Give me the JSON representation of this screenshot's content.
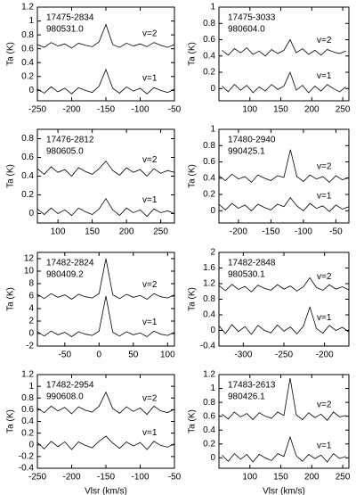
{
  "chart_data": [
    {
      "type": "line",
      "title": "17475-2834",
      "subtitle": "980531.0",
      "ylabel": "Ta (K)",
      "x": [
        -250,
        -240,
        -230,
        -220,
        -210,
        -200,
        -190,
        -180,
        -170,
        -160,
        -150,
        -140,
        -130,
        -120,
        -110,
        -100,
        -90,
        -80,
        -70,
        -60,
        -50
      ],
      "series": [
        {
          "name": "v=2",
          "color": "#000000",
          "values": [
            0.66,
            0.62,
            0.69,
            0.64,
            0.67,
            0.61,
            0.68,
            0.65,
            0.63,
            0.7,
            0.95,
            0.66,
            0.62,
            0.68,
            0.64,
            0.67,
            0.63,
            0.69,
            0.65,
            0.62,
            0.66
          ]
        },
        {
          "name": "v=1",
          "color": "#000000",
          "values": [
            0.02,
            -0.04,
            0.05,
            -0.02,
            0.03,
            -0.05,
            0.04,
            0.0,
            -0.03,
            0.06,
            0.3,
            0.03,
            -0.04,
            0.05,
            -0.01,
            0.03,
            -0.05,
            0.04,
            0.0,
            -0.03,
            0.02
          ]
        }
      ],
      "xlim": [
        -250,
        -50
      ],
      "xticks": [
        -250,
        -200,
        -150,
        -100,
        -50
      ],
      "ylim": [
        -0.15,
        1.2
      ],
      "yticks": [
        0,
        0.2,
        0.4,
        0.6,
        0.8,
        1,
        1.2
      ]
    },
    {
      "type": "line",
      "title": "17475-3033",
      "subtitle": "980604.0",
      "ylabel": "Ta (K)",
      "x": [
        55,
        65,
        75,
        85,
        95,
        105,
        115,
        125,
        135,
        145,
        155,
        165,
        175,
        185,
        195,
        205,
        215,
        225,
        235,
        245,
        255
      ],
      "series": [
        {
          "name": "v=2",
          "color": "#000000",
          "values": [
            0.47,
            0.41,
            0.49,
            0.44,
            0.5,
            0.42,
            0.46,
            0.4,
            0.48,
            0.43,
            0.47,
            0.6,
            0.44,
            0.49,
            0.42,
            0.47,
            0.41,
            0.48,
            0.45,
            0.43,
            0.46
          ]
        },
        {
          "name": "v=1",
          "color": "#000000",
          "values": [
            0.03,
            -0.04,
            0.05,
            -0.02,
            0.04,
            -0.05,
            0.02,
            -0.03,
            0.05,
            -0.01,
            0.03,
            0.2,
            -0.02,
            0.04,
            -0.05,
            0.03,
            -0.03,
            0.05,
            0.0,
            -0.04,
            0.02
          ]
        }
      ],
      "xlim": [
        50,
        260
      ],
      "xticks": [
        100,
        150,
        200,
        250
      ],
      "ylim": [
        -0.15,
        1
      ],
      "yticks": [
        0,
        0.2,
        0.4,
        0.6,
        0.8,
        1
      ]
    },
    {
      "type": "line",
      "title": "17476-2812",
      "subtitle": "980605.0",
      "ylabel": "Ta (K)",
      "x": [
        70,
        80,
        90,
        100,
        110,
        120,
        130,
        140,
        150,
        160,
        170,
        180,
        190,
        200,
        210,
        220,
        230,
        240,
        250,
        260,
        270
      ],
      "series": [
        {
          "name": "v=2",
          "color": "#000000",
          "values": [
            0.48,
            0.42,
            0.5,
            0.44,
            0.47,
            0.4,
            0.49,
            0.45,
            0.42,
            0.48,
            0.56,
            0.46,
            0.41,
            0.49,
            0.44,
            0.47,
            0.4,
            0.48,
            0.43,
            0.46,
            0.44
          ]
        },
        {
          "name": "v=1",
          "color": "#000000",
          "values": [
            0.05,
            -0.01,
            0.06,
            0.0,
            0.04,
            -0.02,
            0.06,
            0.02,
            -0.01,
            0.05,
            0.16,
            0.04,
            -0.02,
            0.06,
            0.01,
            0.04,
            -0.03,
            0.05,
            0.01,
            0.03,
            0.0
          ]
        }
      ],
      "xlim": [
        70,
        270
      ],
      "xticks": [
        100,
        150,
        200,
        250
      ],
      "ylim": [
        -0.1,
        0.9
      ],
      "yticks": [
        0,
        0.2,
        0.4,
        0.6,
        0.8
      ]
    },
    {
      "type": "line",
      "title": "17480-2940",
      "subtitle": "990425.1",
      "ylabel": "Ta (K)",
      "x": [
        -230,
        -220,
        -210,
        -200,
        -190,
        -180,
        -170,
        -160,
        -150,
        -140,
        -130,
        -120,
        -110,
        -100,
        -90,
        -80,
        -70,
        -60,
        -50,
        -40,
        -30
      ],
      "series": [
        {
          "name": "v=2",
          "color": "#000000",
          "values": [
            0.43,
            0.37,
            0.45,
            0.39,
            0.42,
            0.35,
            0.44,
            0.4,
            0.37,
            0.43,
            0.41,
            0.75,
            0.42,
            0.36,
            0.44,
            0.39,
            0.42,
            0.35,
            0.43,
            0.38,
            0.41
          ]
        },
        {
          "name": "v=1",
          "color": "#000000",
          "values": [
            0.08,
            0.01,
            0.09,
            0.03,
            0.07,
            0.0,
            0.08,
            0.04,
            0.01,
            0.08,
            0.05,
            0.16,
            0.06,
            0.0,
            0.09,
            0.03,
            0.06,
            -0.01,
            0.07,
            0.02,
            0.05
          ]
        }
      ],
      "xlim": [
        -230,
        -30
      ],
      "xticks": [
        -200,
        -150,
        -100,
        -50
      ],
      "ylim": [
        -0.15,
        1
      ],
      "yticks": [
        0,
        0.2,
        0.4,
        0.6,
        0.8,
        1
      ]
    },
    {
      "type": "line",
      "title": "17482-2824",
      "subtitle": "980409.2",
      "ylabel": "Ta (K)",
      "x": [
        -90,
        -80,
        -70,
        -60,
        -50,
        -40,
        -30,
        -20,
        -10,
        0,
        10,
        20,
        30,
        40,
        50,
        60,
        70,
        80,
        90,
        100,
        110
      ],
      "series": [
        {
          "name": "v=2",
          "color": "#000000",
          "values": [
            6.3,
            5.6,
            6.4,
            5.8,
            6.2,
            5.5,
            6.3,
            5.9,
            5.7,
            6.4,
            12.0,
            6.2,
            5.6,
            6.3,
            5.8,
            6.1,
            5.5,
            6.4,
            5.9,
            5.7,
            6.2
          ]
        },
        {
          "name": "v=1",
          "color": "#000000",
          "values": [
            0.3,
            -0.4,
            0.4,
            -0.2,
            0.2,
            -0.5,
            0.3,
            -0.1,
            -0.3,
            0.4,
            6.0,
            0.2,
            -0.4,
            0.3,
            -0.2,
            0.1,
            -0.5,
            0.4,
            -0.1,
            -0.3,
            0.2
          ]
        }
      ],
      "xlim": [
        -90,
        110
      ],
      "xticks": [
        -50,
        0,
        50,
        100
      ],
      "ylim": [
        -2,
        13
      ],
      "yticks": [
        -2,
        0,
        2,
        4,
        6,
        8,
        10,
        12
      ]
    },
    {
      "type": "line",
      "title": "17482-2848",
      "subtitle": "980530.1",
      "ylabel": "Ta (K)",
      "x": [
        -330,
        -322,
        -314,
        -306,
        -298,
        -290,
        -282,
        -274,
        -266,
        -258,
        -250,
        -242,
        -234,
        -226,
        -218,
        -210,
        -202,
        -194,
        -186,
        -178,
        -170
      ],
      "series": [
        {
          "name": "v=2",
          "color": "#000000",
          "values": [
            1.15,
            1.02,
            1.18,
            1.05,
            1.13,
            0.99,
            1.16,
            1.08,
            1.03,
            1.17,
            1.06,
            1.14,
            1.01,
            1.12,
            1.35,
            1.1,
            1.03,
            1.17,
            1.06,
            1.12,
            1.04
          ]
        },
        {
          "name": "v=1",
          "color": "#000000",
          "values": [
            0.12,
            -0.08,
            0.15,
            -0.03,
            0.1,
            -0.1,
            0.13,
            0.0,
            -0.06,
            0.14,
            -0.02,
            0.09,
            -0.09,
            0.11,
            0.6,
            0.05,
            -0.07,
            0.13,
            0.0,
            0.08,
            -0.04
          ]
        }
      ],
      "xlim": [
        -330,
        -170
      ],
      "xticks": [
        -300,
        -250,
        -200
      ],
      "ylim": [
        -0.4,
        2
      ],
      "yticks": [
        -0.4,
        0,
        0.4,
        0.8,
        1.2,
        1.6,
        2
      ]
    },
    {
      "type": "line",
      "title": "17482-2954",
      "subtitle": "990608.0",
      "ylabel": "Ta (K)",
      "xlabel": "Vlsr (km/s)",
      "x": [
        -250,
        -240,
        -230,
        -220,
        -210,
        -200,
        -190,
        -180,
        -170,
        -160,
        -150,
        -140,
        -130,
        -120,
        -110,
        -100,
        -90,
        -80,
        -70,
        -60,
        -50
      ],
      "series": [
        {
          "name": "v=2",
          "color": "#000000",
          "values": [
            0.63,
            0.55,
            0.66,
            0.58,
            0.64,
            0.53,
            0.65,
            0.59,
            0.56,
            0.66,
            0.9,
            0.62,
            0.54,
            0.65,
            0.57,
            0.63,
            0.52,
            0.66,
            0.58,
            0.55,
            0.61
          ]
        },
        {
          "name": "v=1",
          "color": "#000000",
          "values": [
            0.04,
            -0.07,
            0.06,
            -0.03,
            0.05,
            -0.08,
            0.05,
            -0.01,
            -0.05,
            0.06,
            0.15,
            0.03,
            -0.06,
            0.05,
            -0.02,
            0.04,
            -0.08,
            0.06,
            -0.01,
            -0.04,
            0.02
          ]
        }
      ],
      "xlim": [
        -250,
        -50
      ],
      "xticks": [
        -250,
        -200,
        -150,
        -100,
        -50
      ],
      "ylim": [
        -0.4,
        1.2
      ],
      "yticks": [
        -0.4,
        -0.2,
        0,
        0.2,
        0.4,
        0.6,
        0.8,
        1,
        1.2
      ]
    },
    {
      "type": "line",
      "title": "17483-2613",
      "subtitle": "980426.1",
      "ylabel": "Ta (K)",
      "xlabel": "Vlsr (km/s)",
      "x": [
        55,
        65,
        75,
        85,
        95,
        105,
        115,
        125,
        135,
        145,
        155,
        165,
        175,
        185,
        195,
        205,
        215,
        225,
        235,
        245,
        255
      ],
      "series": [
        {
          "name": "v=2",
          "color": "#000000",
          "values": [
            0.63,
            0.56,
            0.66,
            0.59,
            0.64,
            0.55,
            0.65,
            0.6,
            0.57,
            0.66,
            0.61,
            1.15,
            0.62,
            0.55,
            0.65,
            0.58,
            0.63,
            0.54,
            0.66,
            0.59,
            0.61
          ]
        },
        {
          "name": "v=1",
          "color": "#000000",
          "values": [
            0.04,
            -0.05,
            0.06,
            -0.02,
            0.05,
            -0.06,
            0.05,
            0.0,
            -0.04,
            0.06,
            0.02,
            0.3,
            0.03,
            -0.05,
            0.05,
            -0.01,
            0.04,
            -0.06,
            0.06,
            -0.01,
            0.02
          ]
        }
      ],
      "xlim": [
        50,
        260
      ],
      "xticks": [
        100,
        150,
        200,
        250
      ],
      "ylim": [
        -0.15,
        1.2
      ],
      "yticks": [
        0,
        0.2,
        0.4,
        0.6,
        0.8,
        1,
        1.2
      ]
    }
  ]
}
